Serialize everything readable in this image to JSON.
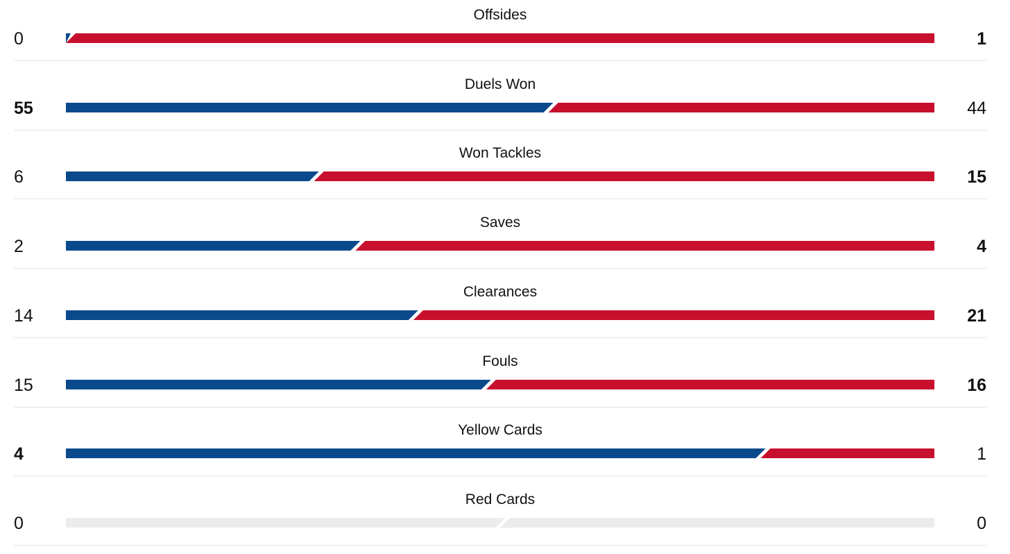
{
  "colors": {
    "home": "#0a4a8c",
    "away": "#c8102e",
    "empty": "#ececec",
    "divider": "#e4e4e4"
  },
  "stats": [
    {
      "label": "Offsides",
      "home": "0",
      "away": "1"
    },
    {
      "label": "Duels Won",
      "home": "55",
      "away": "44"
    },
    {
      "label": "Won Tackles",
      "home": "6",
      "away": "15"
    },
    {
      "label": "Saves",
      "home": "2",
      "away": "4"
    },
    {
      "label": "Clearances",
      "home": "14",
      "away": "21"
    },
    {
      "label": "Fouls",
      "home": "15",
      "away": "16"
    },
    {
      "label": "Yellow Cards",
      "home": "4",
      "away": "1"
    },
    {
      "label": "Red Cards",
      "home": "0",
      "away": "0"
    }
  ]
}
